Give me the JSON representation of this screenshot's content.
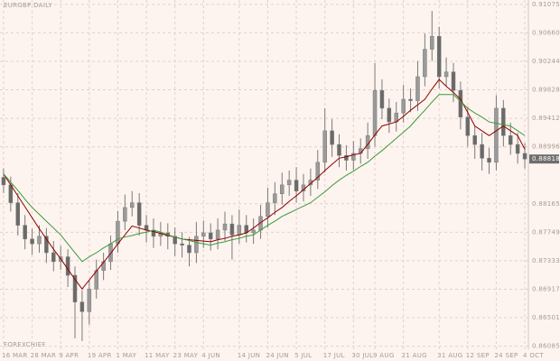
{
  "chart_data": {
    "type": "candlestick",
    "title": "EURGBP DAILY",
    "watermark": "FOREXCHIEF",
    "categories": [
      "16 MAR",
      null,
      null,
      null,
      "28 MAR",
      null,
      null,
      null,
      "9 APR",
      null,
      null,
      null,
      "19 APR",
      null,
      null,
      null,
      "1 MAY",
      null,
      null,
      null,
      "11 MAY",
      null,
      null,
      null,
      "23 MAY",
      null,
      null,
      null,
      "4 JUN",
      null,
      null,
      null,
      null,
      "14 JUN",
      null,
      null,
      null,
      "24 JUN",
      null,
      null,
      null,
      "5 JUL",
      null,
      null,
      null,
      "17 JUL",
      null,
      null,
      null,
      "30 JUL",
      null,
      null,
      "9 AUG",
      null,
      null,
      null,
      "21 AUG",
      null,
      null,
      null,
      null,
      "31 AUG",
      null,
      null,
      null,
      "12 SEP",
      null,
      null,
      null,
      "24 SEP",
      null,
      null,
      null,
      "4 OCT"
    ],
    "open": [
      0.8855,
      0.8844,
      0.8818,
      0.8785,
      0.8765,
      0.8758,
      0.8769,
      0.8745,
      0.8732,
      0.8739,
      0.8712,
      0.8673,
      0.8659,
      0.8692,
      0.8719,
      0.8732,
      0.8758,
      0.8791,
      0.8811,
      0.8818,
      0.8785,
      0.8778,
      0.8769,
      0.8774,
      0.8769,
      0.8758,
      0.8756,
      0.8745,
      0.8769,
      0.8774,
      0.8765,
      0.8778,
      0.8787,
      0.8771,
      0.8785,
      0.8774,
      0.8778,
      0.8798,
      0.8818,
      0.8831,
      0.8844,
      0.8851,
      0.8835,
      0.8844,
      0.8851,
      0.8877,
      0.8923,
      0.8903,
      0.8887,
      0.888,
      0.889,
      0.8897,
      0.8916,
      0.8982,
      0.8956,
      0.8936,
      0.8949,
      0.8969,
      0.8967,
      0.9002,
      0.9042,
      0.9061,
      0.9002,
      0.9009,
      0.8982,
      0.8943,
      0.8916,
      0.8903,
      0.8883,
      0.8877,
      0.8956,
      0.8916,
      0.8903,
      0.889
    ],
    "high": [
      0.8868,
      0.8856,
      0.8832,
      0.88,
      0.878,
      0.8785,
      0.8781,
      0.8762,
      0.8755,
      0.875,
      0.8725,
      0.869,
      0.8705,
      0.8735,
      0.8745,
      0.877,
      0.8806,
      0.883,
      0.8835,
      0.8832,
      0.88,
      0.8795,
      0.879,
      0.8788,
      0.8782,
      0.8775,
      0.8768,
      0.879,
      0.8792,
      0.8788,
      0.8795,
      0.8805,
      0.88,
      0.8808,
      0.88,
      0.8795,
      0.8815,
      0.884,
      0.8848,
      0.8862,
      0.8865,
      0.887,
      0.886,
      0.8868,
      0.8895,
      0.8956,
      0.894,
      0.8918,
      0.8902,
      0.8908,
      0.8912,
      0.8935,
      0.9022,
      0.8998,
      0.897,
      0.8965,
      0.899,
      0.8985,
      0.9025,
      0.9065,
      0.9098,
      0.9075,
      0.903,
      0.9022,
      0.8995,
      0.8958,
      0.893,
      0.892,
      0.8898,
      0.8975,
      0.8968,
      0.8935,
      0.892,
      0.8905
    ],
    "low": [
      0.8832,
      0.8805,
      0.877,
      0.875,
      0.8742,
      0.8745,
      0.873,
      0.8718,
      0.872,
      0.8695,
      0.862,
      0.8616,
      0.864,
      0.8678,
      0.8705,
      0.872,
      0.8745,
      0.8778,
      0.8798,
      0.877,
      0.876,
      0.8752,
      0.8755,
      0.875,
      0.874,
      0.8738,
      0.8725,
      0.873,
      0.8752,
      0.8748,
      0.875,
      0.8762,
      0.8735,
      0.8758,
      0.876,
      0.8758,
      0.8765,
      0.8782,
      0.88,
      0.8815,
      0.8828,
      0.8818,
      0.882,
      0.8828,
      0.8838,
      0.8862,
      0.8885,
      0.887,
      0.8865,
      0.8866,
      0.8875,
      0.8882,
      0.89,
      0.894,
      0.892,
      0.8922,
      0.8935,
      0.895,
      0.8952,
      0.8988,
      0.9025,
      0.8985,
      0.8988,
      0.8965,
      0.8925,
      0.89,
      0.8882,
      0.8865,
      0.886,
      0.8865,
      0.89,
      0.8888,
      0.8875,
      0.8868
    ],
    "close": [
      0.8844,
      0.8818,
      0.8785,
      0.8765,
      0.8758,
      0.8769,
      0.8745,
      0.8732,
      0.8739,
      0.8712,
      0.8673,
      0.8659,
      0.8692,
      0.8719,
      0.8732,
      0.8758,
      0.8791,
      0.8811,
      0.8818,
      0.8785,
      0.8778,
      0.8769,
      0.8774,
      0.8769,
      0.8758,
      0.8756,
      0.8745,
      0.8769,
      0.8774,
      0.8765,
      0.8778,
      0.8787,
      0.8771,
      0.8785,
      0.8774,
      0.8778,
      0.8798,
      0.8818,
      0.8831,
      0.8844,
      0.8851,
      0.8835,
      0.8844,
      0.8851,
      0.8877,
      0.8923,
      0.8903,
      0.8887,
      0.888,
      0.889,
      0.8897,
      0.8916,
      0.8982,
      0.8956,
      0.8936,
      0.8949,
      0.8969,
      0.8967,
      0.9002,
      0.9042,
      0.9061,
      0.9002,
      0.9009,
      0.8982,
      0.8943,
      0.8916,
      0.8903,
      0.8883,
      0.8877,
      0.8956,
      0.8916,
      0.8903,
      0.889,
      0.88818
    ],
    "candle_color": "#7a7a7a",
    "moving_averages": [
      {
        "color": "#8b0000",
        "values": [
          0.886,
          0.8844,
          0.8828,
          0.8812,
          0.8796,
          0.878,
          0.8765,
          0.875,
          0.8736,
          0.8721,
          0.8706,
          0.8692,
          0.8705,
          0.8718,
          0.8731,
          0.8744,
          0.8758,
          0.8771,
          0.8784,
          0.8781,
          0.8778,
          0.8776,
          0.8773,
          0.877,
          0.8768,
          0.8765,
          0.8764,
          0.8763,
          0.8762,
          0.8761,
          0.8764,
          0.8766,
          0.8769,
          0.8771,
          0.8774,
          0.8781,
          0.8789,
          0.8796,
          0.8804,
          0.8811,
          0.882,
          0.8828,
          0.8837,
          0.8846,
          0.8855,
          0.8865,
          0.8874,
          0.8883,
          0.8885,
          0.8888,
          0.889,
          0.8903,
          0.8917,
          0.893,
          0.8933,
          0.8936,
          0.8944,
          0.8953,
          0.8961,
          0.8969,
          0.8984,
          0.8998,
          0.8988,
          0.8979,
          0.8969,
          0.895,
          0.893,
          0.8923,
          0.8916,
          0.8923,
          0.893,
          0.8923,
          0.8916,
          0.8896
        ]
      },
      {
        "color": "#3c9a3c",
        "values": [
          0.886,
          0.8848,
          0.8836,
          0.8823,
          0.8811,
          0.8801,
          0.8791,
          0.8781,
          0.8771,
          0.8758,
          0.8745,
          0.8732,
          0.8739,
          0.8745,
          0.8752,
          0.8758,
          0.8765,
          0.8768,
          0.877,
          0.8773,
          0.8775,
          0.8778,
          0.8775,
          0.8771,
          0.8768,
          0.8765,
          0.8763,
          0.876,
          0.8758,
          0.8756,
          0.8759,
          0.8761,
          0.8764,
          0.8766,
          0.8769,
          0.8771,
          0.8778,
          0.8785,
          0.8791,
          0.8798,
          0.8803,
          0.8808,
          0.8813,
          0.8818,
          0.8826,
          0.8834,
          0.8843,
          0.8851,
          0.8858,
          0.8864,
          0.8871,
          0.8877,
          0.8886,
          0.8894,
          0.8903,
          0.8912,
          0.8921,
          0.893,
          0.8942,
          0.8953,
          0.8965,
          0.8976,
          0.8976,
          0.8976,
          0.8966,
          0.8956,
          0.8949,
          0.8943,
          0.8936,
          0.8934,
          0.8932,
          0.893,
          0.8923,
          0.8916
        ]
      }
    ],
    "last_price": {
      "value": 0.88818,
      "label": "0.88818"
    },
    "ylim": [
      0.8604,
      0.9114
    ],
    "yticks": [
      0.91075,
      {
        "value": 0.9066,
        "label": "0.90660"
      },
      0.90244,
      0.89828,
      0.89412,
      0.88996,
      0.88165,
      0.87749,
      0.87333,
      0.86917,
      0.86501,
      0.86085
    ],
    "grid": true
  }
}
